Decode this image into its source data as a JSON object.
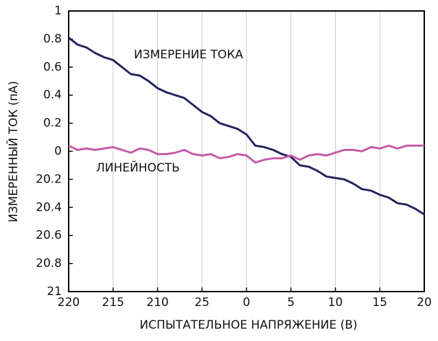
{
  "chart_data": {
    "type": "line",
    "xlabel": "ИСПЫТАТЕЛЬНОЕ НАПРЯЖЕНИЕ (В)",
    "ylabel": "ИЗМЕРЕННЫЙ ТОК (пА)",
    "x": [
      -20,
      -19,
      -18,
      -17,
      -16,
      -15,
      -14,
      -13,
      -12,
      -11,
      -10,
      -9,
      -8,
      -7,
      -6,
      -5,
      -4,
      -3,
      -2,
      -1,
      0,
      1,
      2,
      3,
      4,
      5,
      6,
      7,
      8,
      9,
      10,
      11,
      12,
      13,
      14,
      15,
      16,
      17,
      18,
      19,
      20
    ],
    "series": [
      {
        "name": "ИЗМЕРЕНИЕ ТОКА",
        "color": "#23235e",
        "values": [
          0.81,
          0.76,
          0.74,
          0.7,
          0.67,
          0.65,
          0.6,
          0.55,
          0.54,
          0.5,
          0.45,
          0.42,
          0.4,
          0.38,
          0.33,
          0.28,
          0.25,
          0.2,
          0.18,
          0.16,
          0.12,
          0.04,
          0.03,
          0.01,
          -0.02,
          -0.04,
          -0.1,
          -0.11,
          -0.14,
          -0.18,
          -0.19,
          -0.2,
          -0.23,
          -0.27,
          -0.28,
          -0.31,
          -0.33,
          -0.37,
          -0.38,
          -0.41,
          -0.45
        ]
      },
      {
        "name": "ЛИНЕЙНОСТЬ",
        "color": "#c45aa8",
        "values": [
          0.04,
          0.01,
          0.02,
          0.01,
          0.02,
          0.03,
          0.01,
          -0.01,
          0.02,
          0.01,
          -0.02,
          -0.02,
          -0.01,
          0.01,
          -0.02,
          -0.03,
          -0.02,
          -0.05,
          -0.04,
          -0.02,
          -0.03,
          -0.08,
          -0.06,
          -0.05,
          -0.05,
          -0.03,
          -0.06,
          -0.03,
          -0.02,
          -0.03,
          -0.01,
          0.01,
          0.01,
          0.0,
          0.03,
          0.02,
          0.04,
          0.02,
          0.04,
          0.04,
          0.04
        ]
      }
    ],
    "xlim": [
      -20,
      20
    ],
    "xticks": [
      {
        "value": -20,
        "label": "220"
      },
      {
        "value": -15,
        "label": "215"
      },
      {
        "value": -10,
        "label": "210"
      },
      {
        "value": -5,
        "label": "25"
      },
      0,
      5,
      10,
      15,
      20
    ],
    "ylim": [
      -1,
      1
    ],
    "yticks": [
      {
        "value": -1,
        "label": "21"
      },
      {
        "value": -0.8,
        "label": "20.8"
      },
      {
        "value": -0.6,
        "label": "20.6"
      },
      {
        "value": -0.4,
        "label": "20.4"
      },
      {
        "value": -0.2,
        "label": "20.2"
      },
      0,
      0.2,
      0.4,
      0.6,
      0.8,
      1
    ],
    "xgrid": true
  }
}
